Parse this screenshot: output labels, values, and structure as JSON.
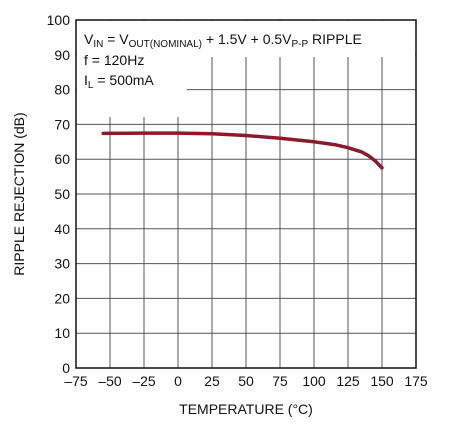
{
  "chart_data": {
    "type": "line",
    "xlabel": "TEMPERATURE (°C)",
    "ylabel": "RIPPLE REJECTION (dB)",
    "xlim": [
      -75,
      175
    ],
    "ylim": [
      0,
      100
    ],
    "x_ticks": [
      -75,
      -50,
      -25,
      0,
      25,
      50,
      75,
      100,
      125,
      150,
      175
    ],
    "y_ticks": [
      0,
      10,
      20,
      30,
      40,
      50,
      60,
      70,
      80,
      90,
      100
    ],
    "x_tick_labels": [
      "–75",
      "–50",
      "–25",
      "0",
      "25",
      "50",
      "75",
      "100",
      "125",
      "150",
      "175"
    ],
    "y_tick_labels": [
      "0",
      "10",
      "20",
      "30",
      "40",
      "50",
      "60",
      "70",
      "80",
      "90",
      "100"
    ],
    "grid": true,
    "series": [
      {
        "color": "#8b1a2e",
        "x": [
          -55,
          -25,
          0,
          25,
          50,
          75,
          100,
          115,
          125,
          135,
          140,
          145,
          150
        ],
        "y": [
          67.4,
          67.5,
          67.5,
          67.3,
          66.8,
          66.0,
          65.0,
          64.2,
          63.3,
          62.1,
          61.0,
          59.5,
          57.5
        ]
      }
    ],
    "annotations": {
      "line1": {
        "p1": "V",
        "p1_sub": "IN",
        "p2": " = V",
        "p2_sub": "OUT(NOMINAL)",
        "p3": " + 1.5V + 0.5V",
        "p3_sub": "P-P",
        "p4": " RIPPLE"
      },
      "line2": "f = 120Hz",
      "line3": {
        "p1": "I",
        "p1_sub": "L",
        "p2": " = 500mA"
      }
    },
    "colors": {
      "grid": "#555555",
      "axis": "#111111",
      "line": "#8b1a2e"
    }
  }
}
